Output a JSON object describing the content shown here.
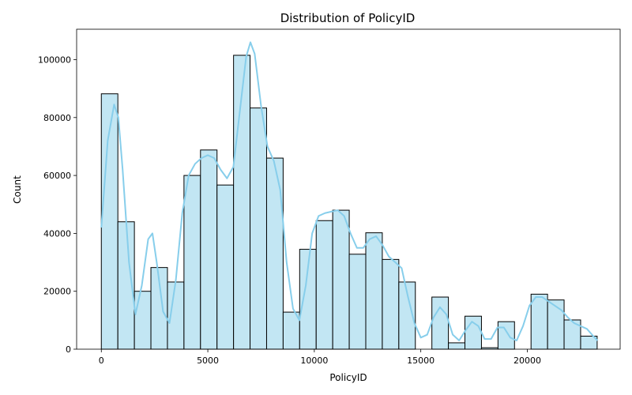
{
  "chart_data": {
    "type": "bar",
    "title": "Distribution of PolicyID",
    "xlabel": "PolicyID",
    "ylabel": "Count",
    "xlim": [
      -1160,
      24360
    ],
    "ylim": [
      0,
      110500
    ],
    "xticks": [
      0,
      5000,
      10000,
      15000,
      20000
    ],
    "yticks": [
      0,
      20000,
      40000,
      60000,
      80000,
      100000
    ],
    "bin_width": 776,
    "bin_start": 0,
    "bin_counts": [
      88200,
      44000,
      20000,
      28200,
      23200,
      60000,
      68800,
      56700,
      101500,
      83300,
      66000,
      12800,
      34500,
      44400,
      48000,
      32800,
      40200,
      31000,
      23200,
      0,
      18000,
      2200,
      11400,
      500,
      9500,
      0,
      19000,
      17000,
      10100,
      4500
    ],
    "kde": {
      "x": [
        0,
        300,
        600,
        800,
        1000,
        1300,
        1600,
        1900,
        2200,
        2400,
        2600,
        2900,
        3200,
        3500,
        3800,
        4100,
        4400,
        4700,
        5000,
        5300,
        5600,
        5900,
        6200,
        6500,
        6800,
        7000,
        7200,
        7500,
        7800,
        8100,
        8400,
        8700,
        9000,
        9300,
        9600,
        9900,
        10200,
        10500,
        10800,
        11100,
        11400,
        11700,
        12000,
        12300,
        12600,
        12900,
        13200,
        13500,
        13800,
        14100,
        14400,
        14700,
        15000,
        15300,
        15600,
        15900,
        16200,
        16500,
        16800,
        17100,
        17400,
        17700,
        18000,
        18300,
        18600,
        18900,
        19200,
        19500,
        19800,
        20100,
        20400,
        20700,
        21000,
        21300,
        21600,
        21900,
        22200,
        22500,
        22800,
        23100,
        23300
      ],
      "y": [
        42000,
        72000,
        84500,
        80000,
        62000,
        30000,
        12000,
        22000,
        38000,
        40000,
        30000,
        13000,
        9000,
        24000,
        47000,
        60000,
        64000,
        66000,
        67000,
        66000,
        62000,
        59000,
        63000,
        82000,
        101000,
        106000,
        102000,
        84000,
        70000,
        65000,
        55000,
        30000,
        14000,
        10000,
        22000,
        40000,
        46000,
        47000,
        47500,
        48000,
        46000,
        40000,
        35000,
        35000,
        38000,
        39000,
        36000,
        32000,
        30000,
        28000,
        18000,
        9000,
        4000,
        5000,
        11000,
        14500,
        12000,
        5000,
        3000,
        6500,
        9500,
        8000,
        3500,
        3500,
        7500,
        7500,
        4000,
        3000,
        8000,
        15000,
        18000,
        18000,
        16500,
        15000,
        13500,
        11000,
        9000,
        8000,
        7000,
        4500,
        3000
      ]
    },
    "colors": {
      "bar_fill": "#c2e6f3",
      "bar_edge": "#000000",
      "kde_line": "#87ceeb"
    },
    "grid": false,
    "legend": "none"
  }
}
